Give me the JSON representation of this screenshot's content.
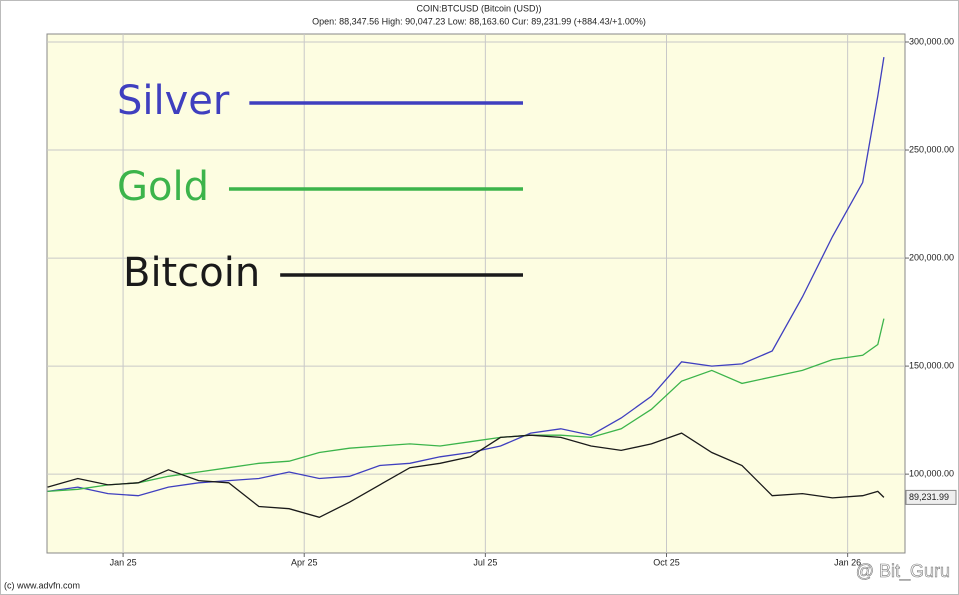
{
  "chart_data": {
    "type": "line",
    "title": "COIN:BTCUSD (Bitcoin (USD))",
    "subtitle": "Open: 88,347.56 High: 90,047.23 Low: 88,163.60 Cur: 89,231.99 (+884.43/+1.00%)",
    "source": "(c) www.advfn.com",
    "watermark": "@ Bit_Guru",
    "legend": "upper-left",
    "grid": true,
    "x": [
      -1.25,
      -0.75,
      -0.25,
      0.25,
      0.75,
      1.25,
      1.75,
      2.25,
      2.75,
      3.25,
      3.75,
      4.25,
      4.75,
      5.25,
      5.75,
      6.25,
      6.75,
      7.25,
      7.75,
      8.25,
      8.75,
      9.25,
      9.75,
      10.25,
      10.75,
      11.25,
      11.75,
      12.25,
      12.5,
      12.6
    ],
    "xlim": [
      -1.26,
      12.95
    ],
    "xticks": [
      {
        "value": 0,
        "label": "Jan 25"
      },
      {
        "value": 3,
        "label": "Apr 25"
      },
      {
        "value": 6,
        "label": "Jul 25"
      },
      {
        "value": 9,
        "label": "Oct 25"
      },
      {
        "value": 12,
        "label": "Jan 26"
      }
    ],
    "ylim": [
      63500,
      303700
    ],
    "yticks": [
      {
        "value": 100000,
        "label": "100,000.00"
      },
      {
        "value": 150000,
        "label": "150,000.00"
      },
      {
        "value": 200000,
        "label": "200,000.00"
      },
      {
        "value": 250000,
        "label": "250,000.00"
      },
      {
        "value": 300000,
        "label": "300,000.00"
      }
    ],
    "current": {
      "value": 89231.99,
      "label": "89,231.99"
    },
    "series": [
      {
        "name": "Silver",
        "color": "#3f3fbf",
        "values": [
          92000,
          94000,
          91000,
          90000,
          94000,
          96000,
          97000,
          98000,
          101000,
          98000,
          99000,
          104000,
          105000,
          108000,
          110000,
          113000,
          119000,
          121000,
          118000,
          126000,
          136000,
          152000,
          150000,
          151000,
          157000,
          182000,
          210000,
          235000,
          275000,
          293000
        ]
      },
      {
        "name": "Gold",
        "color": "#3cb44b",
        "values": [
          92000,
          93000,
          95000,
          96000,
          99000,
          101000,
          103000,
          105000,
          106000,
          110000,
          112000,
          113000,
          114000,
          113000,
          115000,
          117000,
          118000,
          118000,
          117000,
          121000,
          130000,
          143000,
          148000,
          142000,
          145000,
          148000,
          153000,
          155000,
          160000,
          172000
        ]
      },
      {
        "name": "Bitcoin",
        "color": "#1a1a1a",
        "values": [
          94000,
          98000,
          95000,
          96000,
          102000,
          97000,
          96000,
          85000,
          84000,
          80000,
          87000,
          95000,
          103000,
          105000,
          108000,
          117000,
          118000,
          117000,
          113000,
          111000,
          114000,
          119000,
          110000,
          104000,
          90000,
          91000,
          89000,
          90000,
          92000,
          89232
        ]
      }
    ]
  }
}
